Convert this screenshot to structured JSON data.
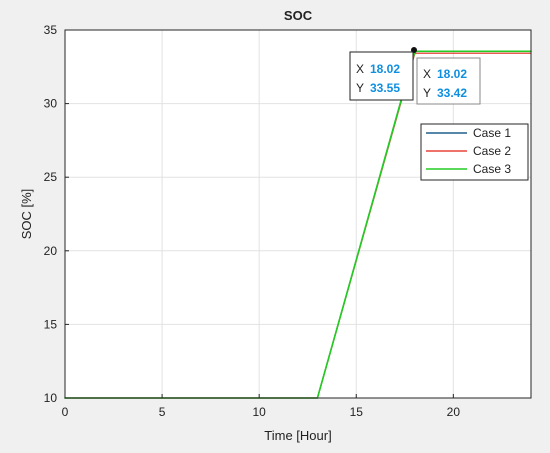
{
  "chart_data": {
    "type": "line",
    "title": "SOC",
    "xlabel": "Time [Hour]",
    "ylabel": "SOC [%]",
    "xlim": [
      0,
      24
    ],
    "ylim": [
      10,
      35
    ],
    "xticks": [
      0,
      5,
      10,
      15,
      20
    ],
    "yticks": [
      10,
      15,
      20,
      25,
      30,
      35
    ],
    "grid": true,
    "legend_location": "top-right",
    "series": [
      {
        "name": "Case 1",
        "color": "#1f5f8b",
        "x": [
          0,
          13,
          18.02,
          24
        ],
        "y": [
          10,
          10,
          33.55,
          33.55
        ]
      },
      {
        "name": "Case 2",
        "color": "#e8423b",
        "x": [
          0,
          13,
          18.02,
          24
        ],
        "y": [
          10,
          10,
          33.42,
          33.42
        ]
      },
      {
        "name": "Case 3",
        "color": "#22cc22",
        "x": [
          0,
          13,
          18.02,
          24
        ],
        "y": [
          10,
          10,
          33.55,
          33.55
        ]
      }
    ],
    "datatips": [
      {
        "x_label": "X",
        "x_value": "18.02",
        "y_label": "Y",
        "y_value": "33.55",
        "x": 18.02,
        "y": 33.55
      },
      {
        "x_label": "X",
        "x_value": "18.02",
        "y_label": "Y",
        "y_value": "33.42",
        "x": 18.02,
        "y": 33.42
      }
    ]
  }
}
